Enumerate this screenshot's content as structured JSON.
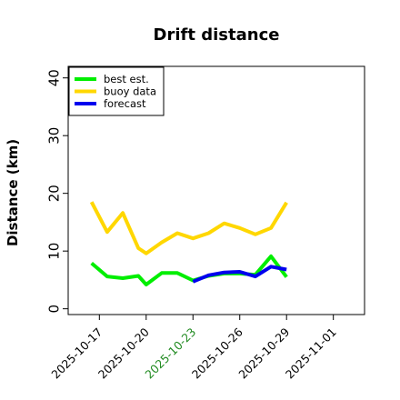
{
  "chart_data": {
    "type": "line",
    "title": "Drift distance",
    "xlabel": "",
    "ylabel": "Distance (km)",
    "xlim": [
      "2025-10-15",
      "2025-11-03"
    ],
    "ylim": [
      -1,
      42
    ],
    "yticks": [
      0,
      10,
      20,
      30,
      40
    ],
    "xticks": [
      {
        "date": "2025-10-17",
        "label": "2025-10-17"
      },
      {
        "date": "2025-10-20",
        "label": "2025-10-20"
      },
      {
        "date": "2025-10-23",
        "label": "2025-10-23"
      },
      {
        "date": "2025-10-26",
        "label": "2025-10-26"
      },
      {
        "date": "2025-10-29",
        "label": "2025-10-29"
      },
      {
        "date": "2025-11-01",
        "label": "2025-11-01"
      }
    ],
    "highlighted_xtick": "2025-10-23",
    "highlight_color": "#228B22",
    "grid": false,
    "legend_position": "top-left",
    "series": [
      {
        "name": "best est.",
        "color": "#00ee00",
        "x": [
          "2025-10-16T12:00",
          "2025-10-17T12:00",
          "2025-10-18T12:00",
          "2025-10-19T12:00",
          "2025-10-20T00:00",
          "2025-10-21T00:00",
          "2025-10-22T00:00",
          "2025-10-23T00:00",
          "2025-10-24T00:00",
          "2025-10-25T00:00",
          "2025-10-26T00:00",
          "2025-10-27T00:00",
          "2025-10-28T00:00",
          "2025-10-29T00:00"
        ],
        "values": [
          7.9,
          5.6,
          5.3,
          5.7,
          4.2,
          6.2,
          6.2,
          4.9,
          5.7,
          6.1,
          6.1,
          5.9,
          9.1,
          5.5
        ]
      },
      {
        "name": "buoy data",
        "color": "#ffd700",
        "x": [
          "2025-10-16T12:00",
          "2025-10-17T12:00",
          "2025-10-18T12:00",
          "2025-10-19T12:00",
          "2025-10-20T00:00",
          "2025-10-21T00:00",
          "2025-10-22T00:00",
          "2025-10-23T00:00",
          "2025-10-24T00:00",
          "2025-10-25T00:00",
          "2025-10-26T00:00",
          "2025-10-27T00:00",
          "2025-10-28T00:00",
          "2025-10-29T00:00"
        ],
        "values": [
          18.5,
          13.3,
          16.6,
          10.5,
          9.6,
          11.5,
          13.1,
          12.2,
          13.1,
          14.8,
          14.0,
          12.9,
          14.0,
          18.4
        ]
      },
      {
        "name": "forecast",
        "color": "#0000ee",
        "x": [
          "2025-10-23T00:00",
          "2025-10-24T00:00",
          "2025-10-25T00:00",
          "2025-10-26T00:00",
          "2025-10-27T00:00",
          "2025-10-28T00:00",
          "2025-10-29T00:00"
        ],
        "values": [
          4.7,
          5.8,
          6.3,
          6.4,
          5.6,
          7.3,
          6.8
        ]
      }
    ]
  }
}
